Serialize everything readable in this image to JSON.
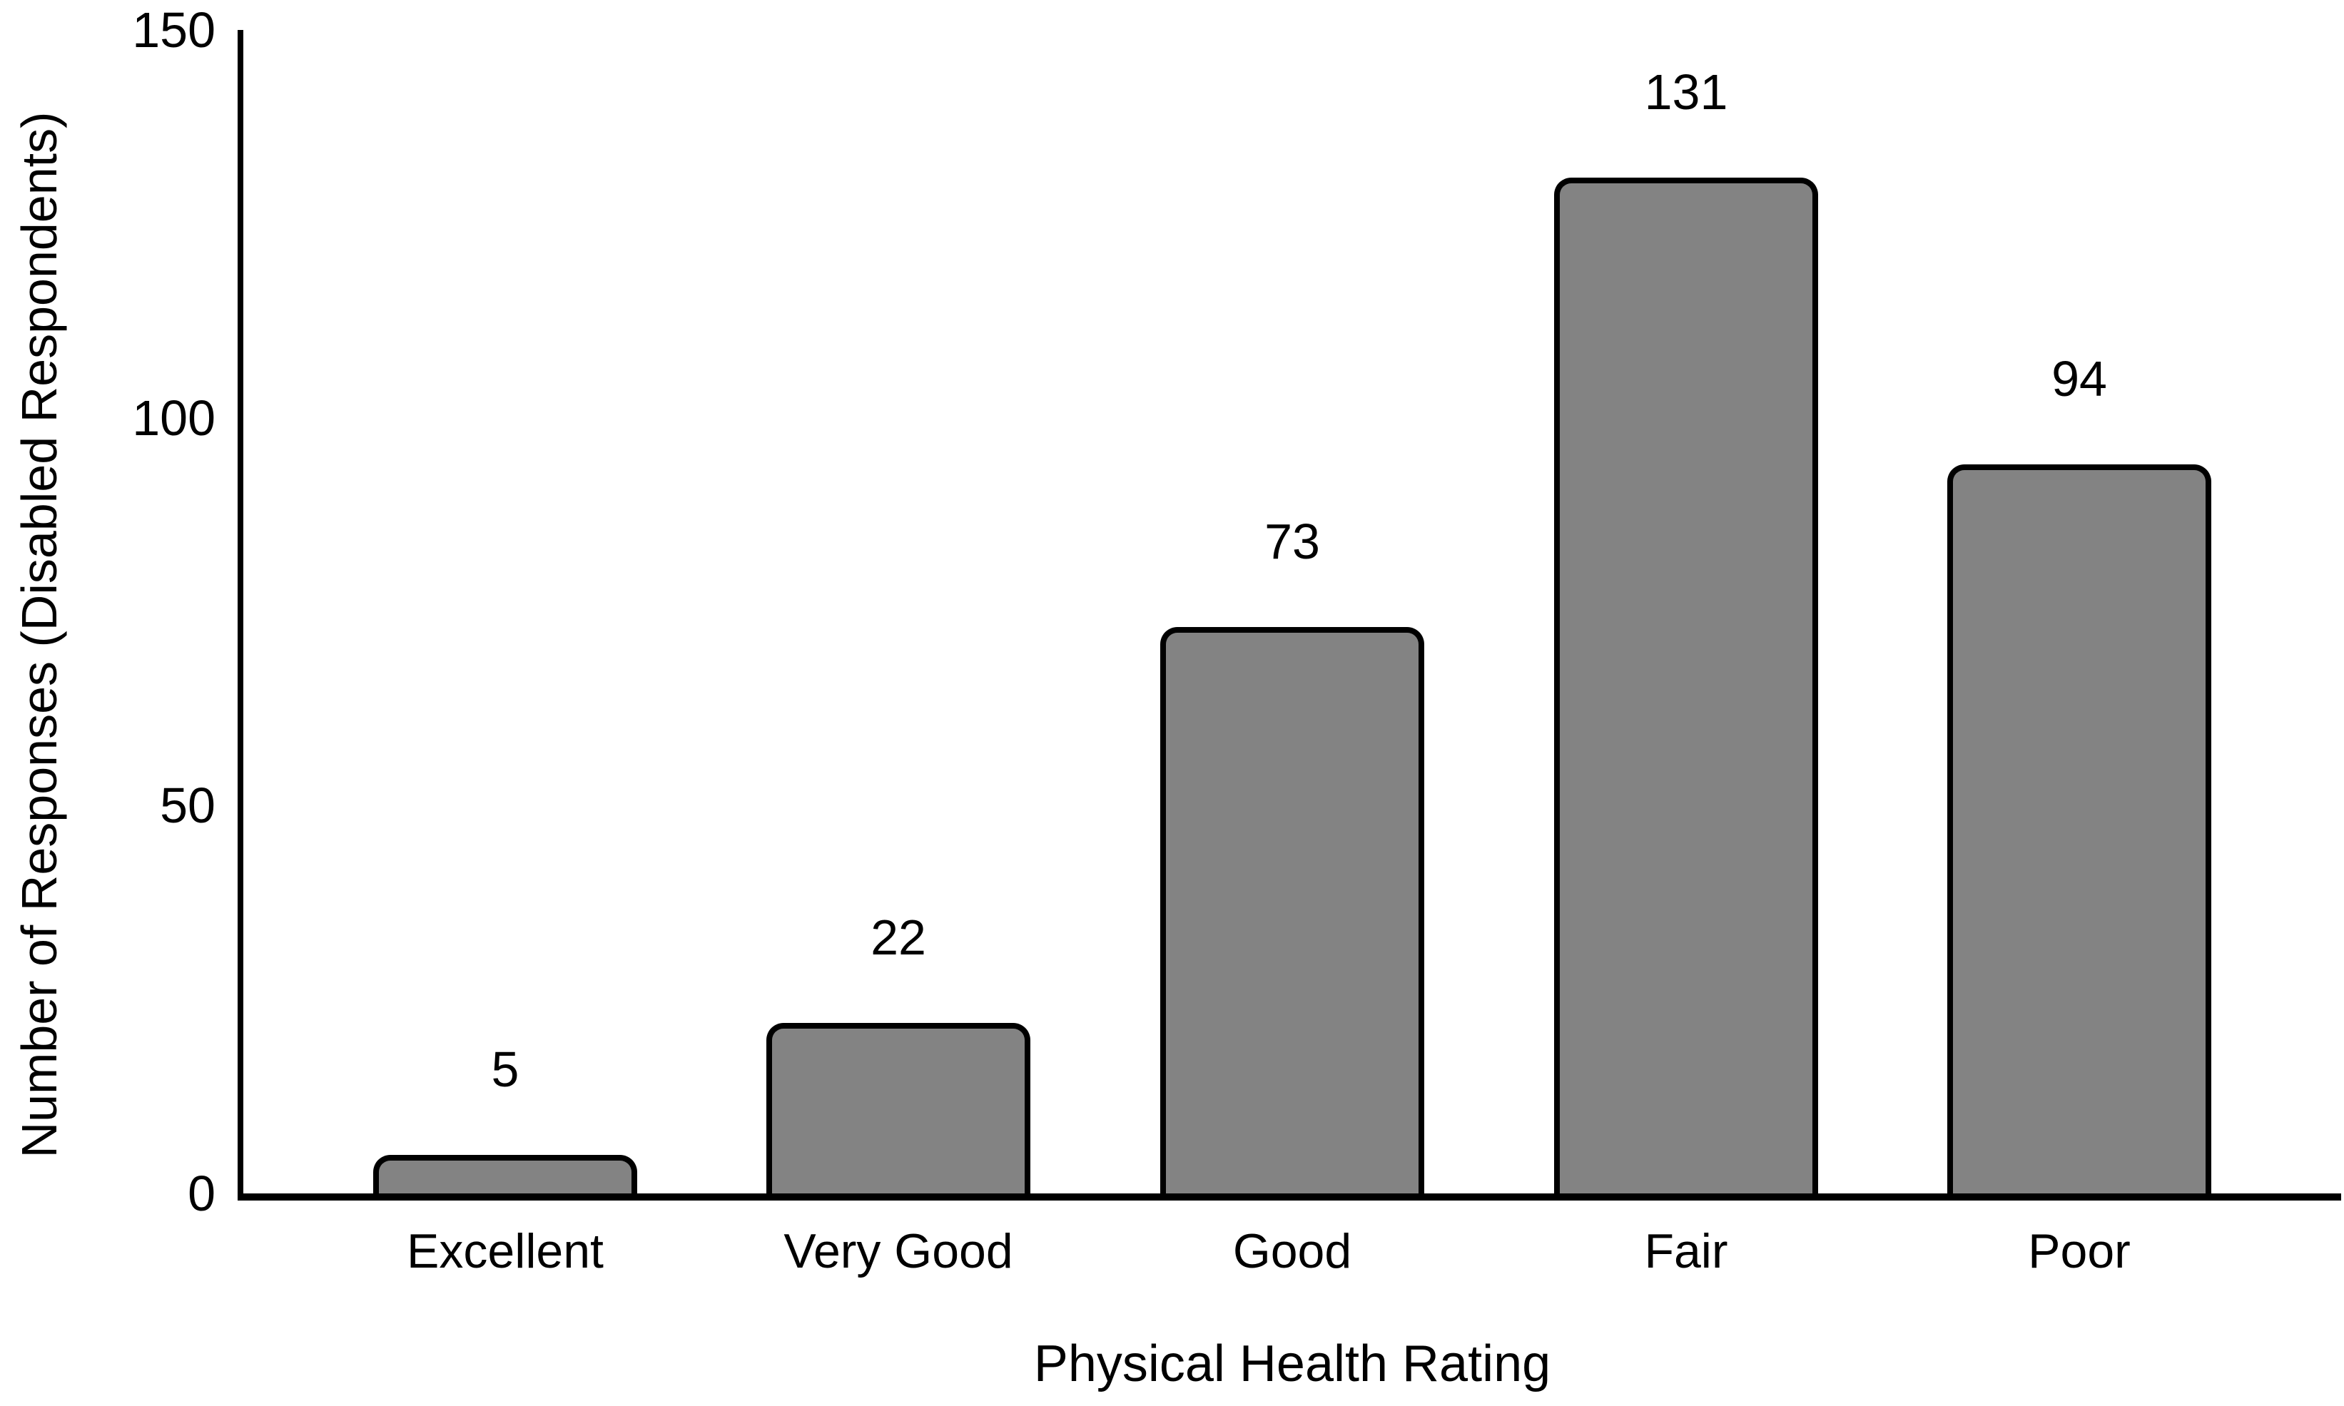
{
  "chart_data": {
    "type": "bar",
    "categories": [
      "Excellent",
      "Very Good",
      "Good",
      "Fair",
      "Poor"
    ],
    "values": [
      5,
      22,
      73,
      131,
      94
    ],
    "data_labels": [
      5,
      22,
      73,
      131,
      94
    ],
    "title": "",
    "xlabel": "Physical Health Rating",
    "ylabel": "Number of Responses (Disabled Respondents)",
    "ylim": [
      0,
      150
    ],
    "yticks": [
      0,
      50,
      100,
      150
    ],
    "grid": false,
    "legend_position": "none",
    "bar_fill_color": "#838383",
    "bar_border_color": "#000000",
    "axis_color": "#000000",
    "text_color": "#000000",
    "background_color": "#ffffff"
  }
}
